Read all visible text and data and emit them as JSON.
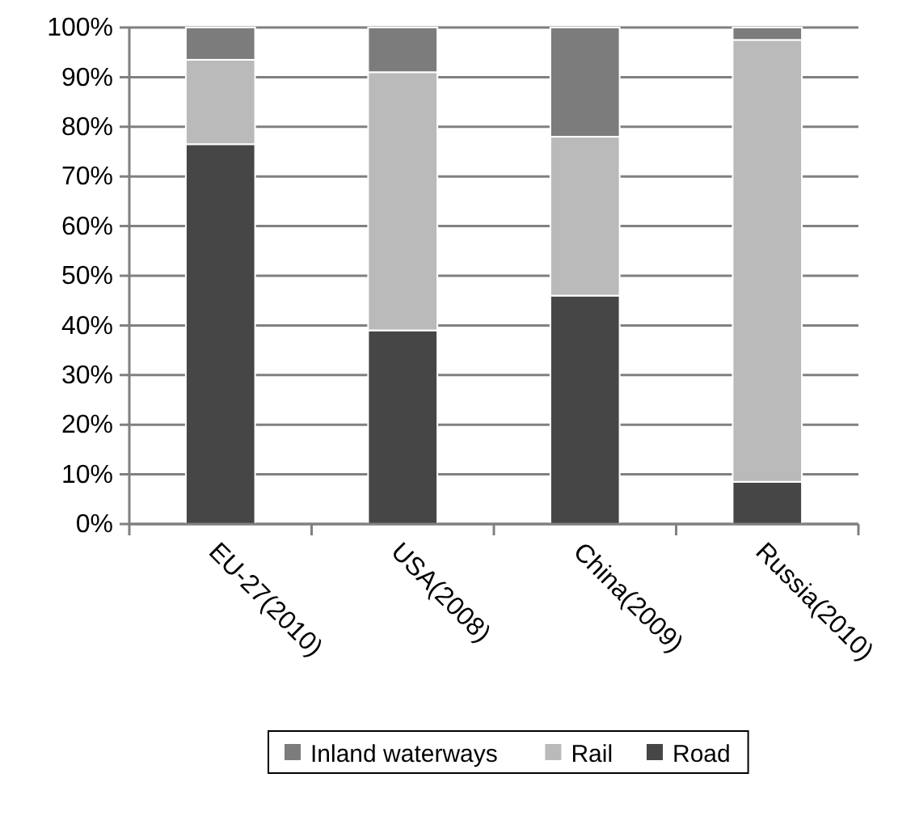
{
  "chart_data": {
    "type": "bar",
    "stacked": true,
    "categories": [
      "EU-27(2010)",
      "USA(2008)",
      "China(2009)",
      "Russia(2010)"
    ],
    "series": [
      {
        "name": "Road",
        "color": "#464646",
        "values": [
          76.5,
          39,
          46,
          8.5
        ]
      },
      {
        "name": "Rail",
        "color": "#bababa",
        "values": [
          17,
          52,
          32,
          89
        ]
      },
      {
        "name": "Inland waterways",
        "color": "#7c7c7c",
        "values": [
          6.5,
          9,
          22,
          2.5
        ]
      }
    ],
    "ylim": [
      0,
      100
    ],
    "yticks": [
      {
        "value": 0,
        "label": "0%"
      },
      {
        "value": 10,
        "label": "10%"
      },
      {
        "value": 20,
        "label": "20%"
      },
      {
        "value": 30,
        "label": "30%"
      },
      {
        "value": 40,
        "label": "40%"
      },
      {
        "value": 50,
        "label": "50%"
      },
      {
        "value": 60,
        "label": "60%"
      },
      {
        "value": 70,
        "label": "70%"
      },
      {
        "value": 80,
        "label": "80%"
      },
      {
        "value": 90,
        "label": "90%"
      },
      {
        "value": 100,
        "label": "100%"
      }
    ],
    "grid": "y",
    "legend": "bottom"
  }
}
